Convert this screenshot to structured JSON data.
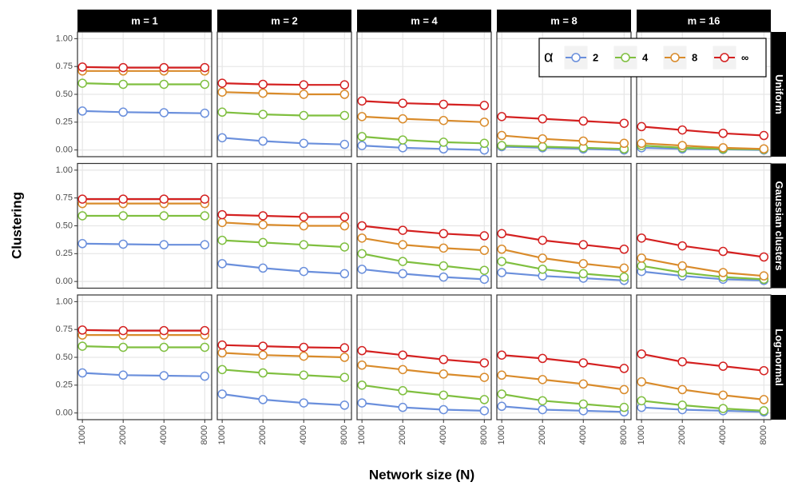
{
  "chart_data": {
    "type": "line",
    "y_label": "Clustering",
    "x_label": "Network size (N)",
    "col_labels": [
      "m = 1",
      "m = 2",
      "m = 4",
      "m = 8",
      "m = 16"
    ],
    "row_labels": [
      "Uniform",
      "Gaussian clusters",
      "Log-normal"
    ],
    "x": [
      1000,
      2000,
      4000,
      8000
    ],
    "log_x": true,
    "xlim": [
      920,
      9000
    ],
    "xticks": [
      1000,
      2000,
      4000,
      8000
    ],
    "ylim": [
      -0.06,
      1.06
    ],
    "yticks": [
      {
        "value": 0,
        "label": "0.00"
      },
      {
        "value": 0.25,
        "label": "0.25"
      },
      {
        "value": 0.5,
        "label": "0.50"
      },
      {
        "value": 0.75,
        "label": "0.75"
      },
      {
        "value": 1,
        "label": "1.00"
      }
    ],
    "grid": true,
    "legend_title": "α",
    "series": [
      {
        "name": "2",
        "color": "#6a8fdc"
      },
      {
        "name": "4",
        "color": "#7fbf3f"
      },
      {
        "name": "8",
        "color": "#d98b2b"
      },
      {
        "name": "∞",
        "color": "#d42020"
      }
    ],
    "panels": [
      [
        [
          [
            0.35,
            0.34,
            0.335,
            0.33
          ],
          [
            0.6,
            0.59,
            0.59,
            0.59
          ],
          [
            0.71,
            0.71,
            0.71,
            0.71
          ],
          [
            0.745,
            0.74,
            0.74,
            0.74
          ]
        ],
        [
          [
            0.11,
            0.08,
            0.06,
            0.05
          ],
          [
            0.34,
            0.32,
            0.31,
            0.31
          ],
          [
            0.52,
            0.51,
            0.5,
            0.5
          ],
          [
            0.6,
            0.59,
            0.585,
            0.585
          ]
        ],
        [
          [
            0.04,
            0.02,
            0.01,
            0.0
          ],
          [
            0.12,
            0.09,
            0.07,
            0.06
          ],
          [
            0.3,
            0.28,
            0.265,
            0.25
          ],
          [
            0.44,
            0.42,
            0.41,
            0.4
          ]
        ],
        [
          [
            0.03,
            0.02,
            0.01,
            0.0
          ],
          [
            0.04,
            0.03,
            0.02,
            0.01
          ],
          [
            0.13,
            0.1,
            0.08,
            0.06
          ],
          [
            0.3,
            0.28,
            0.26,
            0.24
          ]
        ],
        [
          [
            0.02,
            0.01,
            0.005,
            0.0
          ],
          [
            0.04,
            0.02,
            0.01,
            0.005
          ],
          [
            0.06,
            0.04,
            0.02,
            0.01
          ],
          [
            0.21,
            0.18,
            0.15,
            0.13
          ]
        ]
      ],
      [
        [
          [
            0.34,
            0.335,
            0.33,
            0.33
          ],
          [
            0.59,
            0.59,
            0.59,
            0.59
          ],
          [
            0.7,
            0.7,
            0.7,
            0.7
          ],
          [
            0.74,
            0.74,
            0.74,
            0.74
          ]
        ],
        [
          [
            0.16,
            0.12,
            0.09,
            0.07
          ],
          [
            0.37,
            0.35,
            0.33,
            0.31
          ],
          [
            0.53,
            0.51,
            0.5,
            0.5
          ],
          [
            0.6,
            0.59,
            0.58,
            0.58
          ]
        ],
        [
          [
            0.11,
            0.07,
            0.04,
            0.02
          ],
          [
            0.25,
            0.18,
            0.14,
            0.1
          ],
          [
            0.39,
            0.33,
            0.3,
            0.28
          ],
          [
            0.5,
            0.46,
            0.43,
            0.41
          ]
        ],
        [
          [
            0.08,
            0.05,
            0.03,
            0.01
          ],
          [
            0.18,
            0.11,
            0.07,
            0.04
          ],
          [
            0.29,
            0.21,
            0.16,
            0.12
          ],
          [
            0.43,
            0.37,
            0.33,
            0.29
          ]
        ],
        [
          [
            0.09,
            0.05,
            0.02,
            0.01
          ],
          [
            0.14,
            0.08,
            0.04,
            0.02
          ],
          [
            0.21,
            0.14,
            0.08,
            0.05
          ],
          [
            0.39,
            0.32,
            0.27,
            0.22
          ]
        ]
      ],
      [
        [
          [
            0.36,
            0.34,
            0.335,
            0.33
          ],
          [
            0.6,
            0.59,
            0.59,
            0.59
          ],
          [
            0.7,
            0.7,
            0.7,
            0.7
          ],
          [
            0.745,
            0.74,
            0.74,
            0.74
          ]
        ],
        [
          [
            0.17,
            0.12,
            0.09,
            0.07
          ],
          [
            0.39,
            0.36,
            0.34,
            0.32
          ],
          [
            0.54,
            0.52,
            0.51,
            0.5
          ],
          [
            0.61,
            0.6,
            0.59,
            0.585
          ]
        ],
        [
          [
            0.09,
            0.05,
            0.03,
            0.02
          ],
          [
            0.25,
            0.2,
            0.16,
            0.12
          ],
          [
            0.43,
            0.39,
            0.35,
            0.32
          ],
          [
            0.56,
            0.52,
            0.48,
            0.45
          ]
        ],
        [
          [
            0.06,
            0.03,
            0.02,
            0.01
          ],
          [
            0.17,
            0.11,
            0.08,
            0.05
          ],
          [
            0.34,
            0.3,
            0.26,
            0.21
          ],
          [
            0.52,
            0.49,
            0.45,
            0.4
          ]
        ],
        [
          [
            0.05,
            0.03,
            0.02,
            0.01
          ],
          [
            0.11,
            0.07,
            0.04,
            0.02
          ],
          [
            0.28,
            0.21,
            0.16,
            0.12
          ],
          [
            0.53,
            0.46,
            0.42,
            0.38
          ]
        ]
      ]
    ]
  }
}
